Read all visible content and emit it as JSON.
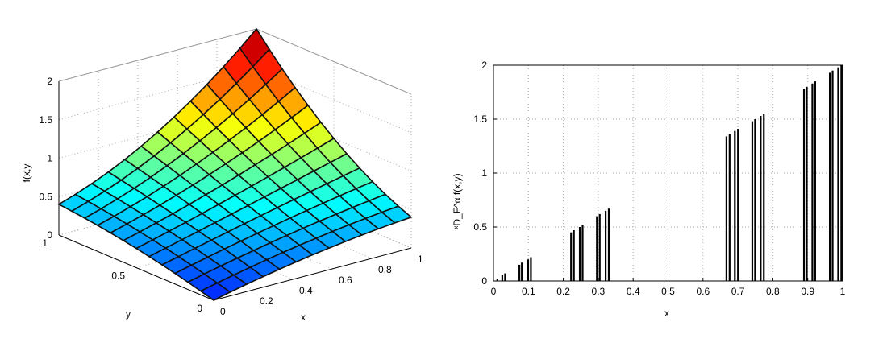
{
  "chart_data": [
    {
      "type": "surface3d",
      "xlabel": "x",
      "ylabel": "y",
      "zlabel": "f(x,y",
      "xlim": [
        0,
        1
      ],
      "ylim": [
        0,
        1
      ],
      "zlim": [
        0,
        2
      ],
      "xticks": [
        "0",
        "0.2",
        "0.4",
        "0.6",
        "0.8",
        "1"
      ],
      "yticks": [
        "0",
        "0.5",
        "1"
      ],
      "zticks": [
        "0",
        "0.5",
        "1",
        "1.5",
        "2"
      ],
      "grid": true,
      "colormap": "jet",
      "surface": {
        "x": [
          0,
          0.5,
          1
        ],
        "y": [
          0,
          0.5,
          1
        ],
        "z": [
          [
            0.0,
            0.25,
            0.4
          ],
          [
            0.25,
            0.6,
            1.0
          ],
          [
            0.4,
            1.0,
            2.0
          ]
        ]
      }
    },
    {
      "type": "bar",
      "xlabel": "x",
      "ylabel": "ˣD_F^α f(x,y)",
      "xlim": [
        0,
        1
      ],
      "ylim": [
        0,
        2
      ],
      "xticks": [
        "0",
        "0.1",
        "0.2",
        "0.3",
        "0.4",
        "0.5",
        "0.6",
        "0.7",
        "0.8",
        "0.9",
        "1"
      ],
      "yticks": [
        "0",
        "0.5",
        "1",
        "1.5",
        "2"
      ],
      "grid": true,
      "x": [
        0.0,
        0.011,
        0.025,
        0.033,
        0.074,
        0.081,
        0.099,
        0.107,
        0.222,
        0.23,
        0.247,
        0.255,
        0.296,
        0.304,
        0.321,
        0.33,
        0.667,
        0.676,
        0.691,
        0.7,
        0.741,
        0.749,
        0.765,
        0.774,
        0.889,
        0.897,
        0.913,
        0.921,
        0.963,
        0.971,
        0.987,
        0.996
      ],
      "values": [
        0.0,
        0.02,
        0.06,
        0.07,
        0.15,
        0.17,
        0.2,
        0.22,
        0.45,
        0.47,
        0.5,
        0.52,
        0.6,
        0.62,
        0.65,
        0.67,
        1.34,
        1.36,
        1.39,
        1.41,
        1.48,
        1.5,
        1.53,
        1.55,
        1.78,
        1.8,
        1.83,
        1.85,
        1.93,
        1.95,
        1.98,
        2.0
      ]
    }
  ]
}
